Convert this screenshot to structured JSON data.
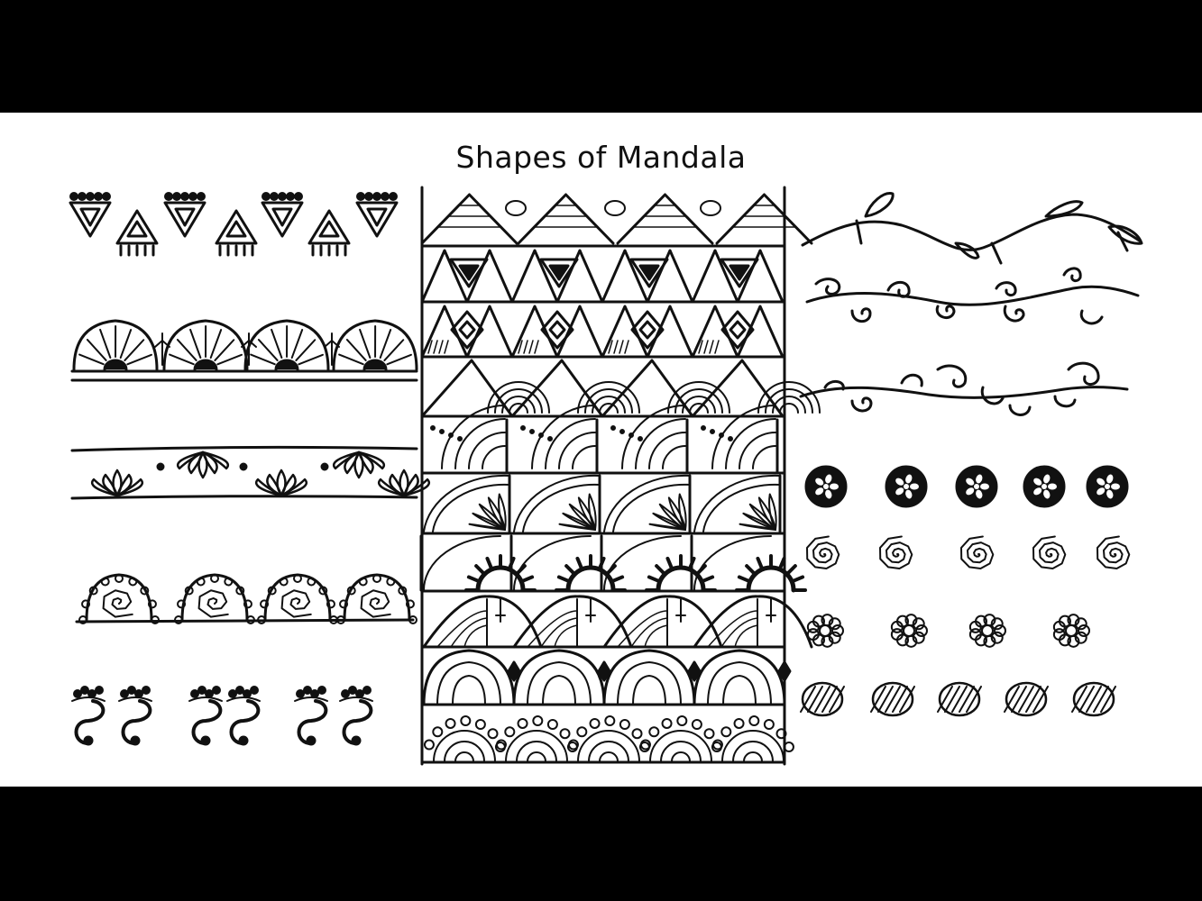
{
  "title": "Shapes of Mandala",
  "colors": {
    "ink": "#111111",
    "paper": "#ffffff",
    "frame": "#000000"
  },
  "panels": {
    "left": [
      "triangle-border",
      "fan-border",
      "lotus-border",
      "spiral-shell-border",
      "paisley-hook-border"
    ],
    "center": [
      "triangle-row",
      "inverted-triangle-row",
      "diamond-row",
      "fan-triangle-row",
      "quarter-fan-row",
      "petal-fan-row",
      "sunburst-row",
      "leaf-row",
      "arch-row",
      "shell-row"
    ],
    "right": [
      "vine-branch",
      "curl-vine",
      "swirl-vine",
      "flower-dots",
      "spiral-dots",
      "cluster-dots",
      "striped-dots"
    ]
  }
}
